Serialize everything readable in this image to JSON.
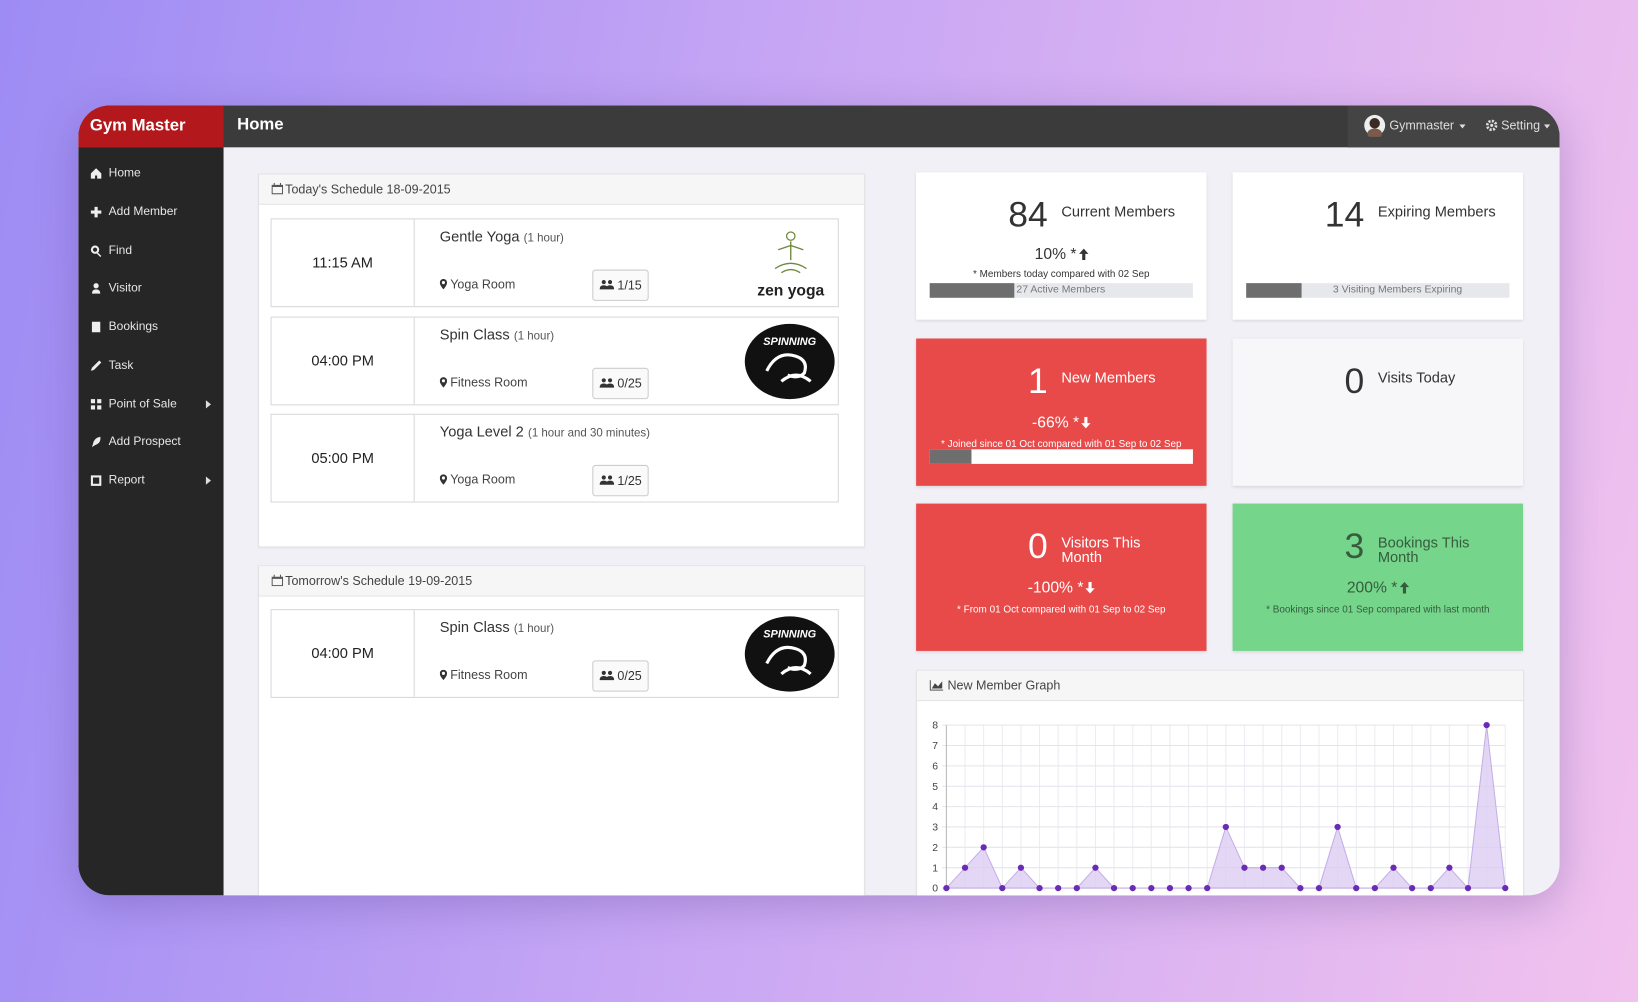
{
  "header": {
    "brand": "Gym Master",
    "page_title": "Home",
    "user": "Gymmaster",
    "settings": "Setting"
  },
  "nav": [
    "Home",
    "Add Member",
    "Find",
    "Visitor",
    "Bookings",
    "Task",
    "Point of Sale",
    "Add Prospect",
    "Report"
  ],
  "schedules": [
    {
      "title": "Today's Schedule 18-09-2015",
      "classes": [
        {
          "time": "11:15 AM",
          "name": "Gentle Yoga",
          "duration": "(1 hour)",
          "room": "Yoga Room",
          "capacity": "1/15",
          "logo": "zen yoga"
        },
        {
          "time": "04:00 PM",
          "name": "Spin Class",
          "duration": "(1 hour)",
          "room": "Fitness Room",
          "capacity": "0/25",
          "logo": "SPINNING"
        },
        {
          "time": "05:00 PM",
          "name": "Yoga Level 2",
          "duration": "(1 hour and 30 minutes)",
          "room": "Yoga Room",
          "capacity": "1/25"
        }
      ]
    },
    {
      "title": "Tomorrow's Schedule 19-09-2015",
      "classes": [
        {
          "time": "04:00 PM",
          "name": "Spin Class",
          "duration": "(1 hour)",
          "room": "Fitness Room",
          "capacity": "0/25",
          "logo": "SPINNING"
        }
      ]
    }
  ],
  "stats": [
    {
      "value": 84,
      "label": "Current Members",
      "change": "10% *",
      "note": "* Members today compared with 02 Sep",
      "bar_label": "27 Active Members",
      "progress": 32
    },
    {
      "value": 14,
      "label": "Expiring Members",
      "bar_label": "3 Visiting Members Expiring",
      "progress": 21
    },
    {
      "value": 1,
      "label": "New Members",
      "change": "-66% *",
      "note": "* Joined since 01 Oct compared with 01 Sep to 02 Sep",
      "progress": 16
    },
    {
      "value": 0,
      "label": "Visits Today"
    },
    {
      "value": 0,
      "label": "Visitors This Month",
      "change": "-100% *",
      "note": "* From 01 Oct compared with 01 Sep to 02 Sep"
    },
    {
      "value": 3,
      "label": "Bookings This Month",
      "change": "200% *",
      "note": "* Bookings since 01 Sep compared with last month"
    }
  ],
  "chart_data": {
    "type": "area",
    "title": "New Member Graph",
    "values": [
      0,
      1,
      2,
      0,
      1,
      0,
      0,
      0,
      1,
      0,
      0,
      0,
      0,
      0,
      0,
      3,
      1,
      1,
      1,
      0,
      0,
      3,
      0,
      0,
      1,
      0,
      0,
      1,
      0,
      8,
      0
    ],
    "ylim": [
      0,
      8
    ],
    "yticks": [
      0,
      1,
      2,
      3,
      4,
      5,
      6,
      7,
      8
    ],
    "grid": true,
    "color": "#6a2bb5"
  }
}
